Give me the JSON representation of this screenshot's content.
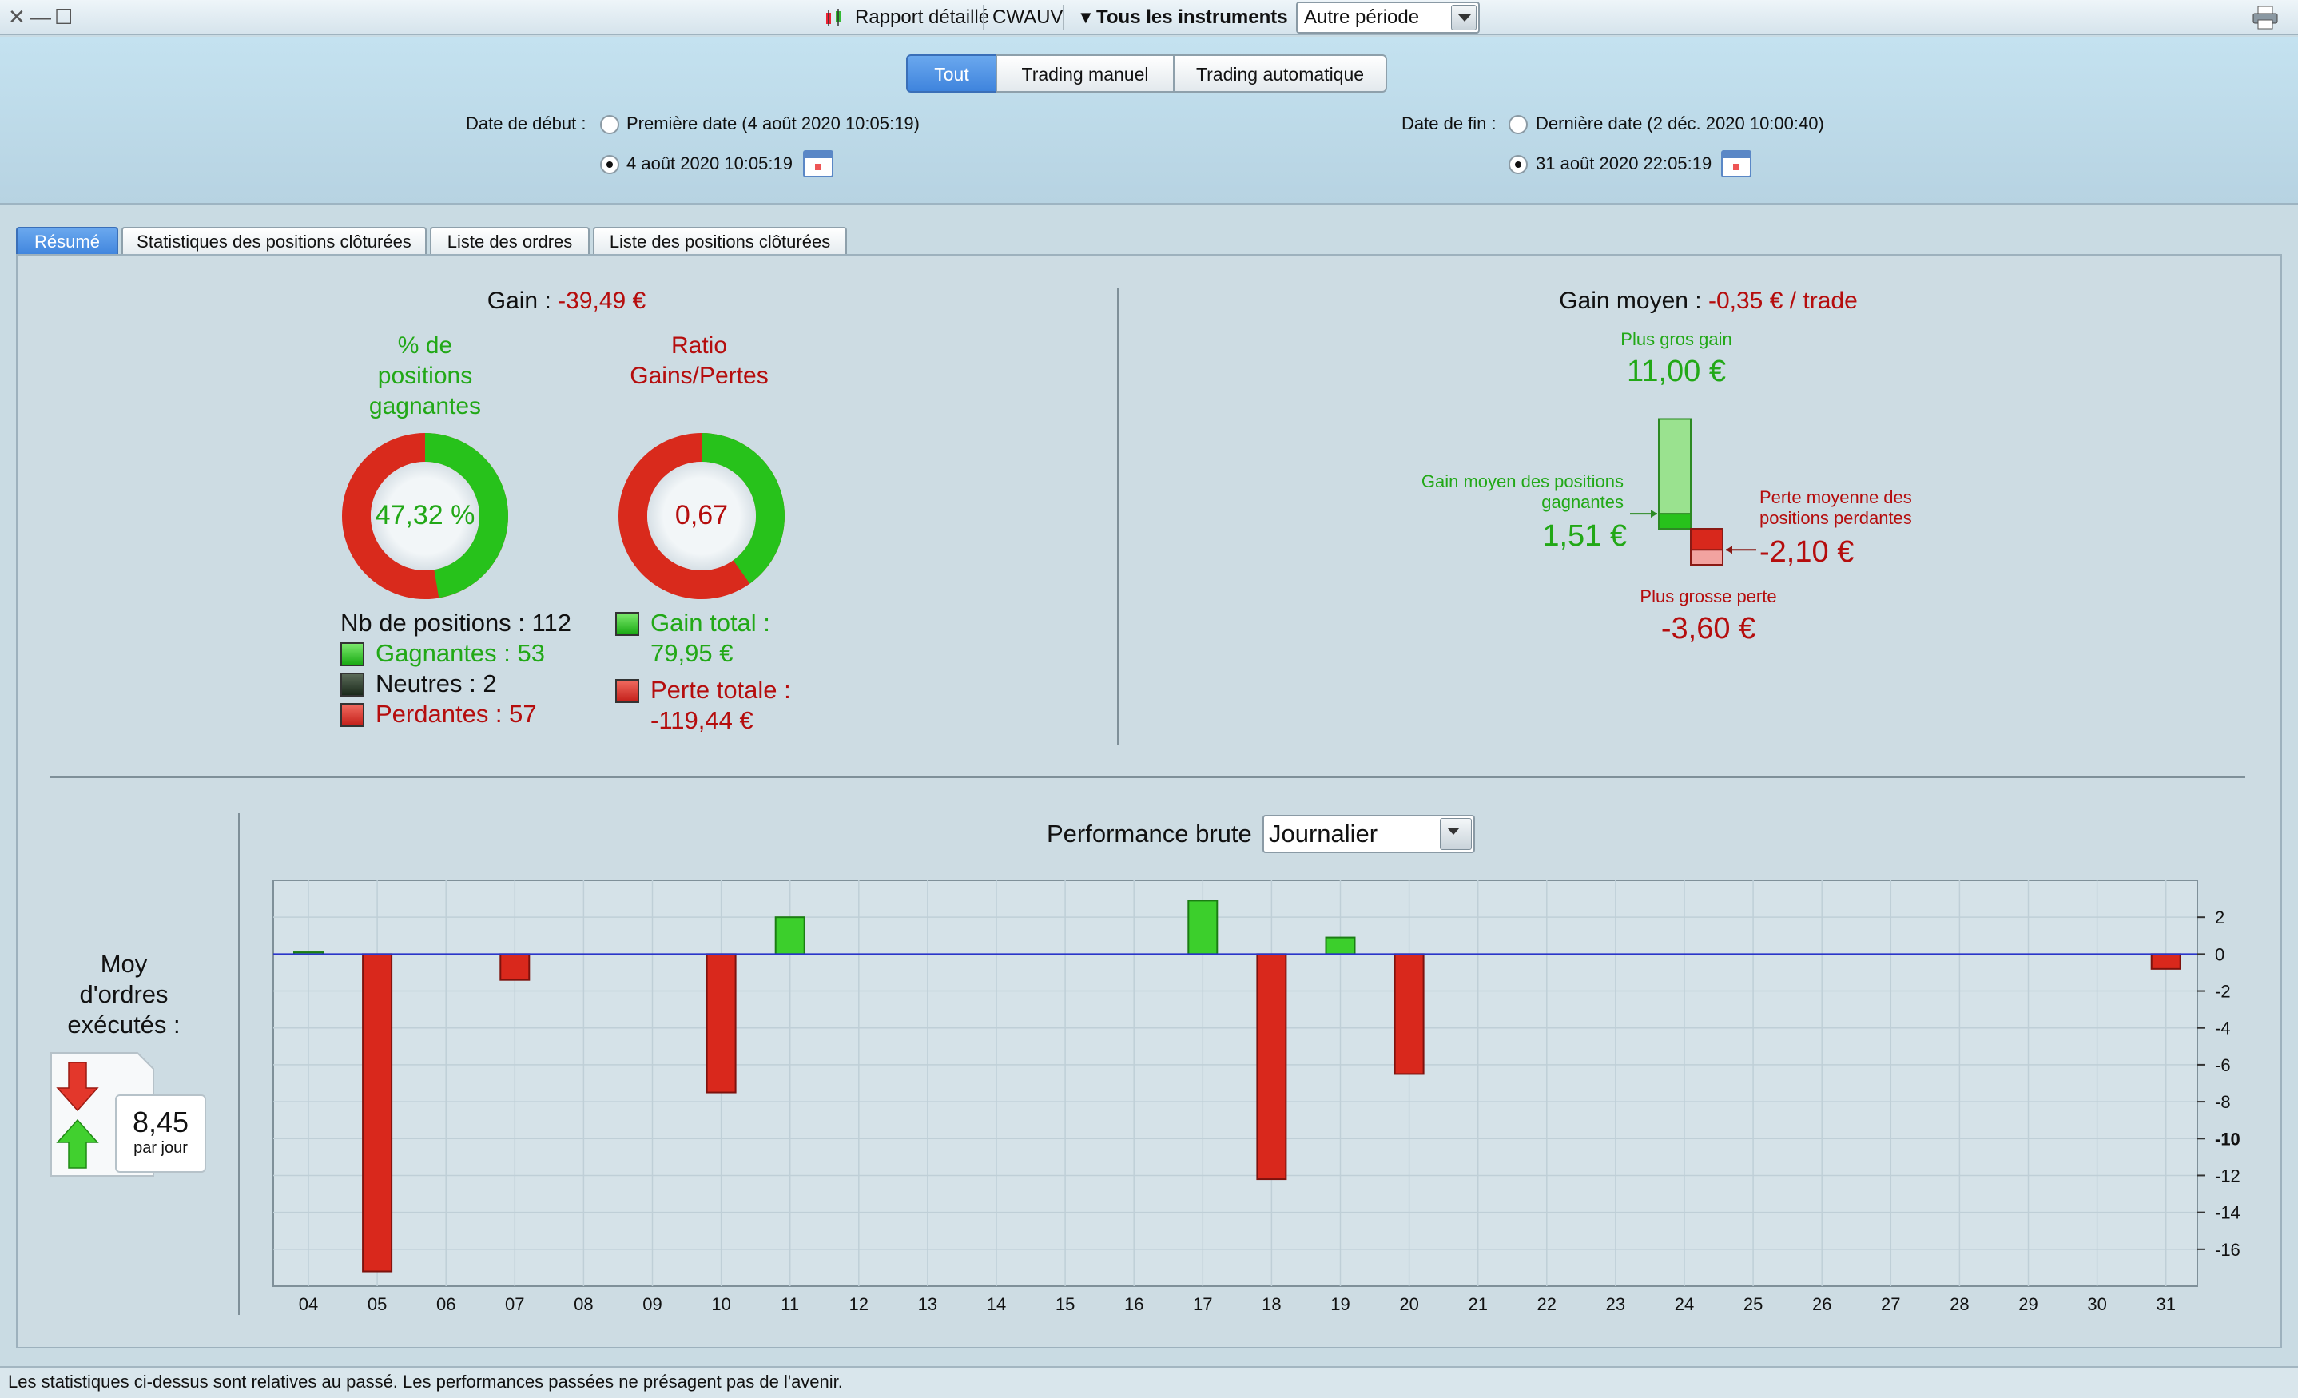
{
  "titlebar": {
    "report_label": "Rapport détaillé",
    "account": "CWAUV",
    "instruments_label": "Tous les instruments",
    "period_value": "Autre période"
  },
  "mode_tabs": [
    {
      "label": "Tout",
      "active": true
    },
    {
      "label": "Trading manuel",
      "active": false
    },
    {
      "label": "Trading automatique",
      "active": false
    }
  ],
  "dates": {
    "start_label": "Date de début :",
    "start_first": "Première date (4 août 2020 10:05:19)",
    "start_custom": "4 août 2020 10:05:19",
    "end_label": "Date de fin :",
    "end_last": "Dernière date (2 déc. 2020 10:00:40)",
    "end_custom": "31 août 2020 22:05:19"
  },
  "tabs": [
    {
      "label": "Résumé",
      "active": true
    },
    {
      "label": "Statistiques des positions clôturées",
      "active": false
    },
    {
      "label": "Liste des ordres",
      "active": false
    },
    {
      "label": "Liste des positions clôturées",
      "active": false
    }
  ],
  "summary": {
    "gain_label": "Gain :",
    "gain_value": "-39,49 €",
    "win_pct_title_1": "% de",
    "win_pct_title_2": "positions",
    "win_pct_title_3": "gagnantes",
    "win_pct_value": "47,32 %",
    "win_pct_fraction": 0.4732,
    "ratio_title_1": "Ratio",
    "ratio_title_2": "Gains/Pertes",
    "ratio_value": "0,67",
    "ratio_fraction": 0.401,
    "nb_positions": "Nb de positions : 112",
    "winners": "Gagnantes : 53",
    "neutral": "Neutres : 2",
    "losers": "Perdantes : 57",
    "gain_total_label": "Gain total :",
    "gain_total_value": "79,95 €",
    "loss_total_label": "Perte totale :",
    "loss_total_value": "-119,44 €"
  },
  "avg": {
    "title": "Gain moyen :",
    "title_value": "-0,35 € / trade",
    "max_gain_label": "Plus gros gain",
    "max_gain_value": "11,00 €",
    "avg_win_label_1": "Gain moyen des positions",
    "avg_win_label_2": "gagnantes",
    "avg_win_value": "1,51 €",
    "avg_loss_label_1": "Perte moyenne des",
    "avg_loss_label_2": "positions perdantes",
    "avg_loss_value": "-2,10 €",
    "max_loss_label": "Plus grosse perte",
    "max_loss_value": "-3,60 €",
    "max_gain": 11.0,
    "avg_win": 1.51,
    "avg_loss": -2.1,
    "max_loss": -3.6
  },
  "orders": {
    "label_1": "Moy",
    "label_2": "d'ordres",
    "label_3": "exécutés :",
    "value": "8,45",
    "unit": "par jour"
  },
  "perf": {
    "title": "Performance brute",
    "period": "Journalier"
  },
  "chart_data": {
    "type": "bar",
    "categories": [
      "04",
      "05",
      "06",
      "07",
      "08",
      "09",
      "10",
      "11",
      "12",
      "13",
      "14",
      "15",
      "16",
      "17",
      "18",
      "19",
      "20",
      "21",
      "22",
      "23",
      "24",
      "25",
      "26",
      "27",
      "28",
      "29",
      "30",
      "31"
    ],
    "values": [
      0.1,
      -17.2,
      0,
      -1.4,
      0,
      0,
      -7.5,
      2.0,
      0,
      0,
      0,
      0,
      0,
      2.9,
      -12.2,
      0.9,
      -6.5,
      0,
      0,
      0,
      0,
      0,
      0,
      0,
      0,
      0,
      0,
      -0.8
    ],
    "ylim": [
      -18,
      4
    ],
    "yticks": [
      "2",
      "0",
      "-2",
      "-4",
      "-6",
      "-8",
      "-10",
      "-12",
      "-14",
      "-16"
    ],
    "ytick_values": [
      2,
      0,
      -2,
      -4,
      -6,
      -8,
      -10,
      -12,
      -14,
      -16
    ],
    "grid": true
  },
  "footer": "Les statistiques ci-dessus sont relatives au passé. Les performances passées ne présagent pas de l'avenir."
}
